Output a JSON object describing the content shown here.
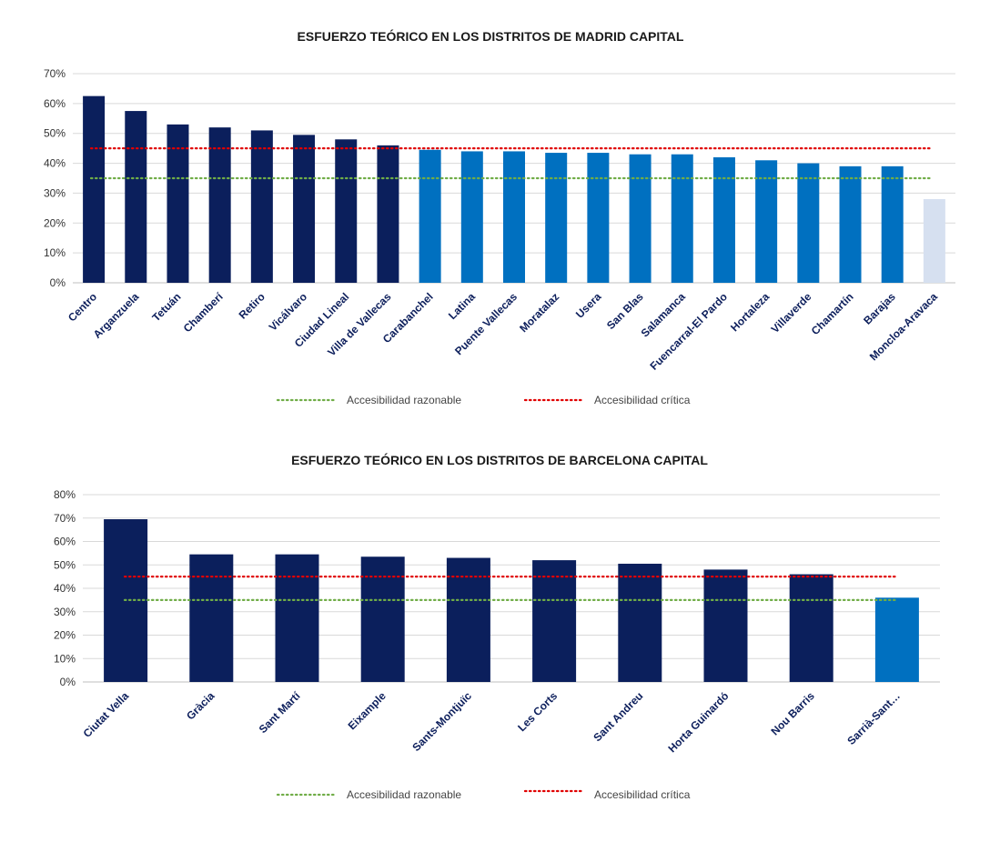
{
  "colors": {
    "dark": "#0b1f5c",
    "blue": "#0070c0",
    "light": "#d6e0f0",
    "grid": "#d9d9d9",
    "reasonable": "#70ad47",
    "critical": "#e00000"
  },
  "legend": {
    "reasonable": "Accesibilidad razonable",
    "critical": "Accesibilidad crítica"
  },
  "chart_data": [
    {
      "type": "bar",
      "title": "ESFUERZO TEÓRICO EN LOS DISTRITOS DE MADRID CAPITAL",
      "xlabel": "",
      "ylabel": "",
      "ylim": [
        0,
        70
      ],
      "yticks": [
        "0%",
        "10%",
        "20%",
        "30%",
        "40%",
        "50%",
        "60%",
        "70%"
      ],
      "categories": [
        "Centro",
        "Arganzuela",
        "Tetuán",
        "Chamberí",
        "Retiro",
        "Vicálvaro",
        "Ciudad Lineal",
        "Villa de Vallecas",
        "Carabanchel",
        "Latina",
        "Puente Vallecas",
        "Moratalaz",
        "Usera",
        "San Blas",
        "Salamanca",
        "Fuencarral-El Pardo",
        "Hortaleza",
        "Villaverde",
        "Chamartín",
        "Barajas",
        "Moncloa-Aravaca"
      ],
      "values": [
        62.5,
        57.5,
        53,
        52,
        51,
        49.5,
        48,
        46,
        44.5,
        44,
        44,
        43.5,
        43.5,
        43,
        43,
        42,
        41,
        40,
        39,
        39,
        28
      ],
      "bar_color_groups": [
        "dark",
        "dark",
        "dark",
        "dark",
        "dark",
        "dark",
        "dark",
        "dark",
        "blue",
        "blue",
        "blue",
        "blue",
        "blue",
        "blue",
        "blue",
        "blue",
        "blue",
        "blue",
        "blue",
        "blue",
        "light"
      ],
      "reference_lines": [
        {
          "name": "Accesibilidad razonable",
          "value": 35,
          "color_key": "reasonable"
        },
        {
          "name": "Accesibilidad crítica",
          "value": 45,
          "color_key": "critical"
        }
      ],
      "grid": true,
      "legend_position": "bottom"
    },
    {
      "type": "bar",
      "title": "ESFUERZO TEÓRICO EN LOS DISTRITOS DE BARCELONA CAPITAL",
      "xlabel": "",
      "ylabel": "",
      "ylim": [
        0,
        80
      ],
      "yticks": [
        "0%",
        "10%",
        "20%",
        "30%",
        "40%",
        "50%",
        "60%",
        "70%",
        "80%"
      ],
      "categories": [
        "Ciutat Vella",
        "Gràcia",
        "Sant Martí",
        "Eixample",
        "Sants-Montjuïc",
        "Les Corts",
        "Sant Andreu",
        "Horta Guinardó",
        "Nou Barris",
        "Sarrià-Sant…"
      ],
      "values": [
        69.5,
        54.5,
        54.5,
        53.5,
        53,
        52,
        50.5,
        48,
        46,
        36
      ],
      "bar_color_groups": [
        "dark",
        "dark",
        "dark",
        "dark",
        "dark",
        "dark",
        "dark",
        "dark",
        "dark",
        "blue"
      ],
      "reference_lines": [
        {
          "name": "Accesibilidad razonable",
          "value": 35,
          "color_key": "reasonable"
        },
        {
          "name": "Accesibilidad crítica",
          "value": 45,
          "color_key": "critical"
        }
      ],
      "grid": true,
      "legend_position": "bottom"
    }
  ]
}
